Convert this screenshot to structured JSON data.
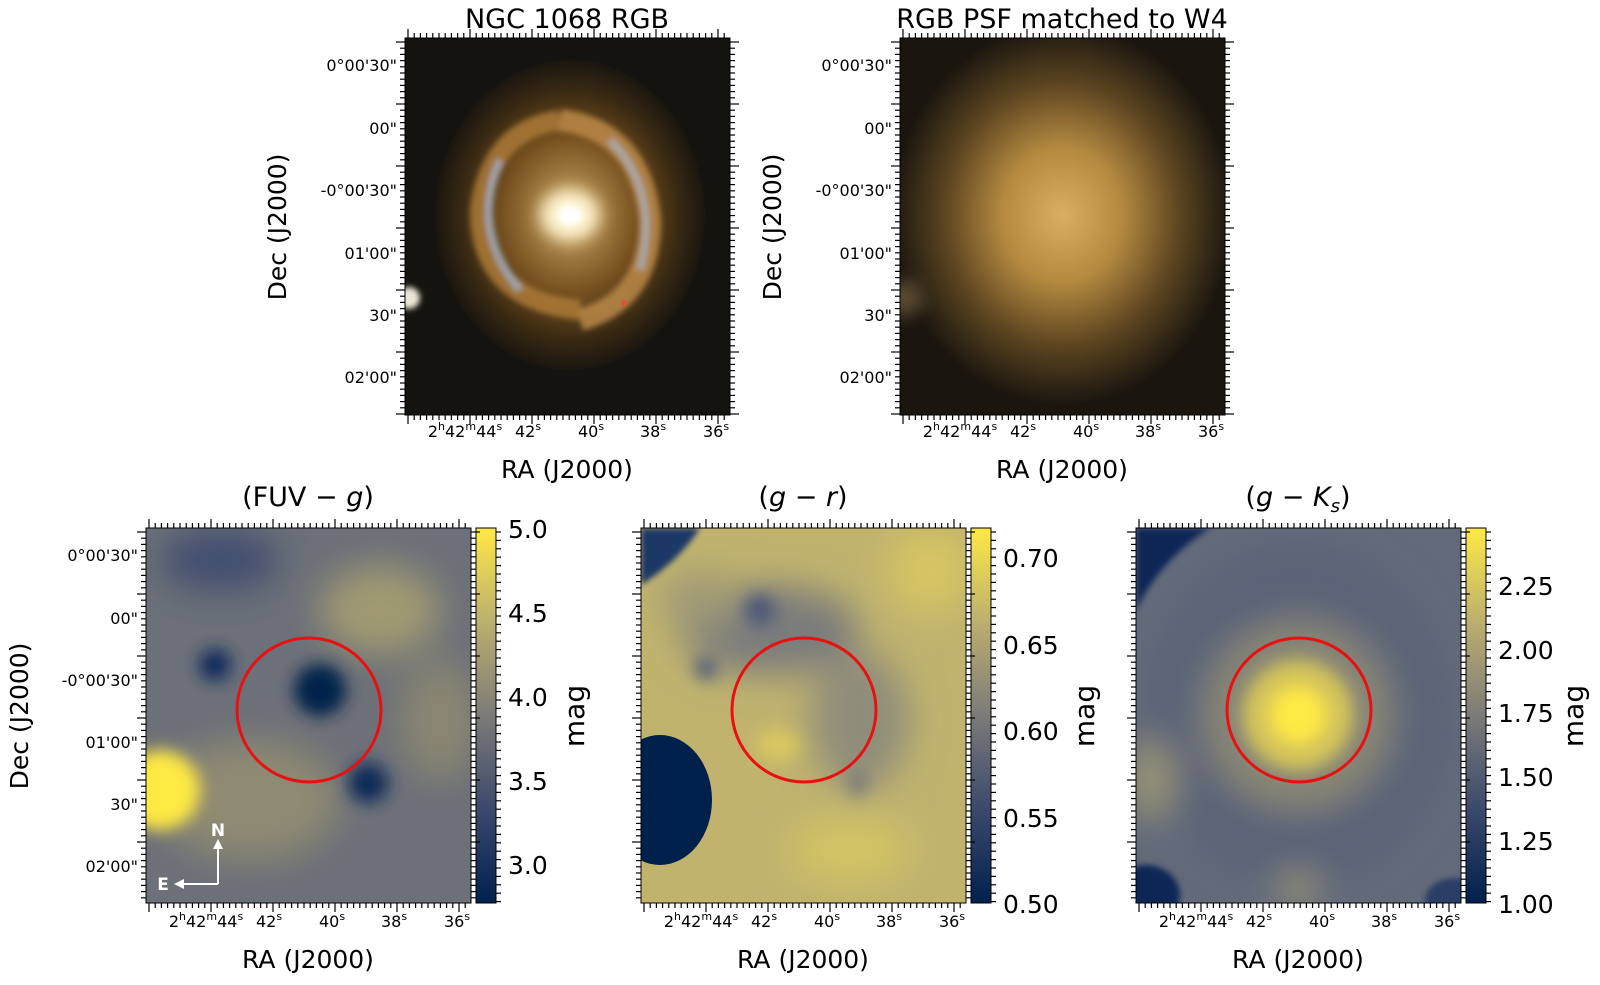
{
  "figure": {
    "panels": [
      {
        "id": "rgb",
        "title": "NGC 1068 RGB"
      },
      {
        "id": "psf",
        "title": "RGB PSF matched to W4"
      },
      {
        "id": "fuvg",
        "title_parts": [
          "(FUV",
          " − ",
          "g",
          ")"
        ]
      },
      {
        "id": "gr",
        "title_parts": [
          "(",
          "g",
          " − ",
          "r",
          ")"
        ]
      },
      {
        "id": "gks",
        "title_parts": [
          "(",
          "g",
          " − ",
          "K",
          "s",
          ")"
        ]
      }
    ],
    "ra_label": "RA (J2000)",
    "dec_label": "Dec (J2000)",
    "ra_ticks": [
      {
        "parts": [
          "2",
          "h",
          "42",
          "m",
          "44",
          "s"
        ]
      },
      {
        "parts": [
          "42",
          "s"
        ]
      },
      {
        "parts": [
          "40",
          "s"
        ]
      },
      {
        "parts": [
          "38",
          "s"
        ]
      },
      {
        "parts": [
          "36",
          "s"
        ]
      }
    ],
    "dec_ticks": [
      "0°00'30\"",
      "00\"",
      "-0°00'30\"",
      "01'00\"",
      "30\"",
      "02'00\""
    ],
    "colorbar_label": "mag",
    "colorbars": {
      "fuvg": [
        "5.0",
        "4.5",
        "4.0",
        "3.5",
        "3.0"
      ],
      "gr": [
        "0.70",
        "0.65",
        "0.60",
        "0.55",
        "0.50"
      ],
      "gks": [
        "2.25",
        "2.00",
        "1.75",
        "1.50",
        "1.25",
        "1.00"
      ]
    },
    "compass": {
      "north": "N",
      "east": "E"
    },
    "colors": {
      "aperture": "#e81010",
      "cmap_low": "#00204c",
      "cmap_mid": "#7c7b78",
      "cmap_high": "#ffe945"
    }
  }
}
